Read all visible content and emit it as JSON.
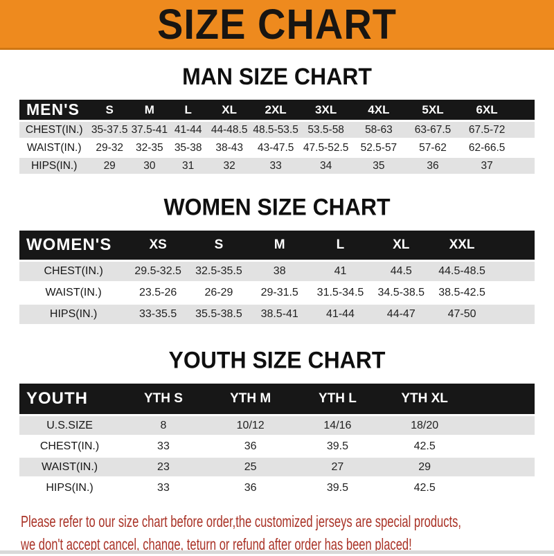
{
  "banner": {
    "title": "SIZE CHART"
  },
  "colors": {
    "banner_bg": "#ee8a1e",
    "banner_border": "#cf7714",
    "table_header_bg": "#171717",
    "stripe_row_bg": "#e2e2e2",
    "footer_text": "#a93226"
  },
  "sections": {
    "men": {
      "heading": "MAN SIZE CHART"
    },
    "women": {
      "heading": "WOMEN SIZE CHART"
    },
    "youth": {
      "heading": "YOUTH SIZE CHART"
    }
  },
  "tables": {
    "men": {
      "header_label": "MEN'S",
      "columns": [
        "S",
        "M",
        "L",
        "XL",
        "2XL",
        "3XL",
        "4XL",
        "5XL",
        "6XL"
      ],
      "rows": [
        {
          "label": "CHEST(IN.)",
          "values": [
            "35-37.5",
            "37.5-41",
            "41-44",
            "44-48.5",
            "48.5-53.5",
            "53.5-58",
            "58-63",
            "63-67.5",
            "67.5-72"
          ]
        },
        {
          "label": "WAIST(IN.)",
          "values": [
            "29-32",
            "32-35",
            "35-38",
            "38-43",
            "43-47.5",
            "47.5-52.5",
            "52.5-57",
            "57-62",
            "62-66.5"
          ]
        },
        {
          "label": "HIPS(IN.)",
          "values": [
            "29",
            "30",
            "31",
            "32",
            "33",
            "34",
            "35",
            "36",
            "37"
          ]
        }
      ]
    },
    "women": {
      "header_label": "WOMEN'S",
      "columns": [
        "XS",
        "S",
        "M",
        "L",
        "XL",
        "XXL"
      ],
      "rows": [
        {
          "label": "CHEST(IN.)",
          "values": [
            "29.5-32.5",
            "32.5-35.5",
            "38",
            "41",
            "44.5",
            "44.5-48.5"
          ]
        },
        {
          "label": "WAIST(IN.)",
          "values": [
            "23.5-26",
            "26-29",
            "29-31.5",
            "31.5-34.5",
            "34.5-38.5",
            "38.5-42.5"
          ]
        },
        {
          "label": "HIPS(IN.)",
          "values": [
            "33-35.5",
            "35.5-38.5",
            "38.5-41",
            "41-44",
            "44-47",
            "47-50"
          ]
        }
      ]
    },
    "youth": {
      "header_label": "YOUTH",
      "columns": [
        "YTH S",
        "YTH M",
        "YTH L",
        "YTH XL"
      ],
      "rows": [
        {
          "label": "U.S.SIZE",
          "values": [
            "8",
            "10/12",
            "14/16",
            "18/20"
          ]
        },
        {
          "label": "CHEST(IN.)",
          "values": [
            "33",
            "36",
            "39.5",
            "42.5"
          ]
        },
        {
          "label": "WAIST(IN.)",
          "values": [
            "23",
            "25",
            "27",
            "29"
          ]
        },
        {
          "label": "HIPS(IN.)",
          "values": [
            "33",
            "36",
            "39.5",
            "42.5"
          ]
        }
      ]
    }
  },
  "footer": {
    "line1": "Please refer to our size chart before order,the customized jerseys are special products,",
    "line2": "we don't accept cancel, change, teturn or refund after order has been placed!"
  }
}
